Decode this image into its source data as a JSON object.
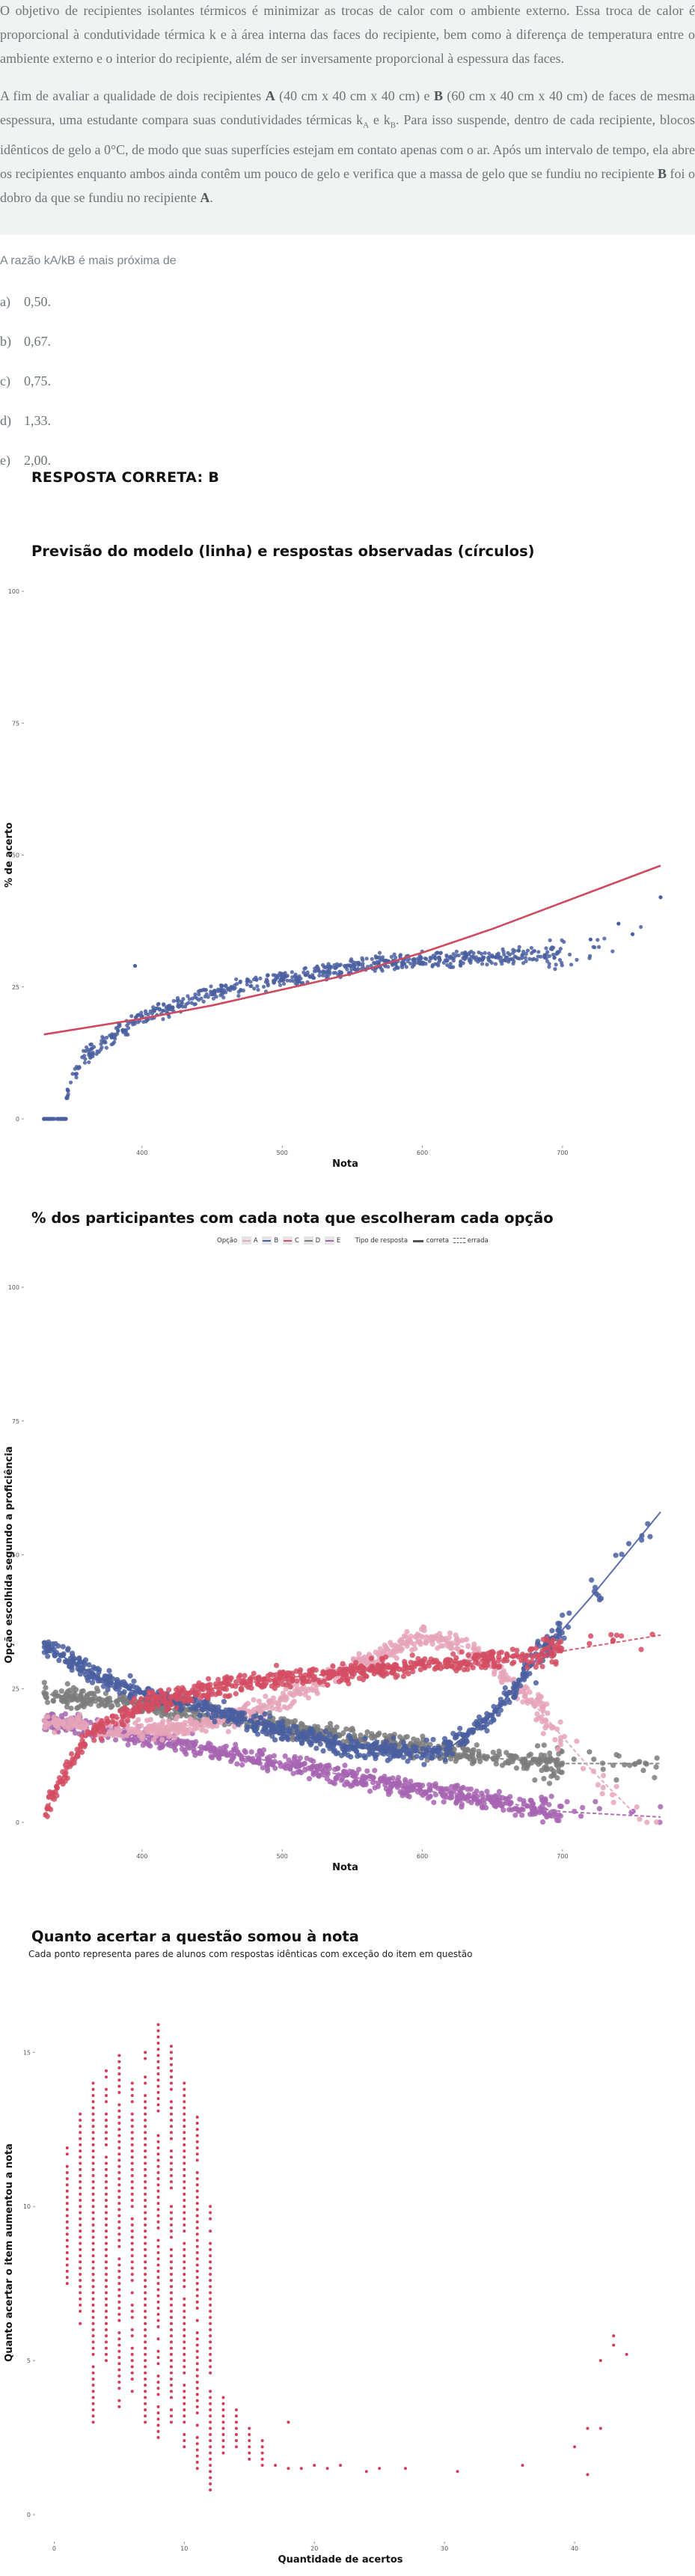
{
  "question": {
    "p1_parts": [
      "O objetivo de recipientes isolantes térmicos é minimizar as trocas de calor com o ambiente externo. Essa troca de calor é proporcional à condutividade térmica k e à área interna das faces do recipiente, bem como à diferença de temperatura entre o ambiente externo e o interior do recipiente, além de ser inversamente proporcional à espessura das faces."
    ],
    "p2_a": "A fim de avaliar a qualidade de dois recipientes ",
    "p2_b": "A",
    "p2_c": " (40 cm x 40 cm x 40 cm) e ",
    "p2_d": "B",
    "p2_e": " (60 cm x 40 cm x 40 cm) de faces de mesma espessura, uma estudante compara suas condutividades térmicas k",
    "p2_f": "A",
    "p2_g": " e k",
    "p2_h": "B",
    "p2_i": ". Para isso suspende, dentro de cada recipiente, blocos idênticos de gelo a 0°C, de modo que suas superfícies estejam em contato apenas com o ar. Após um intervalo de tempo, ela abre os recipientes enquanto ambos ainda contêm um pouco de gelo e verifica que a massa de gelo que se fundiu no recipiente ",
    "p2_j": "B",
    "p2_k": " foi o dobro da que se fundiu no recipiente ",
    "p2_l": "A",
    "p2_m": "."
  },
  "prompt": "A razão kA/kB é mais próxima de",
  "alternatives": [
    {
      "letter": "a)",
      "text": "0,50."
    },
    {
      "letter": "b)",
      "text": "0,67."
    },
    {
      "letter": "c)",
      "text": "0,75."
    },
    {
      "letter": "d)",
      "text": "1,33."
    },
    {
      "letter": "e)",
      "text": "2,00."
    }
  ],
  "answer": "RESPOSTA CORRETA: B",
  "colors": {
    "A": "#e6a5b8",
    "B": "#4a5fa0",
    "C": "#d44d63",
    "D": "#7c7c7c",
    "E": "#a764b2",
    "model_line": "#cf4960",
    "observed": "#4a5fa0",
    "gain_points": "#d33c58"
  },
  "charts": {
    "c1_title": "Previsão do modelo (linha) e respostas observadas (círculos)",
    "c2_title": "% dos participantes com cada nota que escolheram cada opção",
    "c3_title": "Quanto acertar a questão somou à nota",
    "c3_subtitle": "Cada ponto representa pares de alunos com respostas idênticas com exceção do item em questão"
  },
  "legend": {
    "title_opcao": "Opção",
    "options": [
      "A",
      "B",
      "C",
      "D",
      "E"
    ],
    "title_tipo": "Tipo de resposta",
    "tipo_correta": "correta",
    "tipo_errada": "errada"
  },
  "chart_data": [
    {
      "type": "scatter",
      "title": "Previsão do modelo (linha) e respostas observadas (círculos)",
      "xlabel": "Nota",
      "ylabel": "% de acerto",
      "x_ticks": [
        400,
        500,
        600,
        700
      ],
      "y_ticks": [
        0,
        25,
        50,
        75,
        100
      ],
      "xlim": [
        320,
        770
      ],
      "ylim": [
        0,
        100
      ],
      "series": [
        {
          "name": "",
          "kind": "line",
          "x": [
            330,
            400,
            450,
            500,
            550,
            600,
            650,
            700,
            770
          ],
          "values": [
            16,
            19,
            21.5,
            24.5,
            27.5,
            31.5,
            36,
            41,
            48
          ]
        },
        {
          "name": "",
          "kind": "points",
          "x": [
            330,
            340,
            344,
            350,
            360,
            380,
            400,
            430,
            460,
            500,
            540,
            570,
            600,
            640,
            680,
            720,
            750,
            770
          ],
          "values": [
            0,
            0,
            2,
            8,
            12,
            16,
            19.5,
            22,
            24.5,
            26.5,
            28.5,
            29.5,
            30,
            30.5,
            31,
            31.5,
            34,
            42
          ]
        }
      ]
    },
    {
      "type": "scatter",
      "title": "% dos participantes com cada nota que escolheram cada opção",
      "xlabel": "Nota",
      "ylabel": "Opção escolhida segundo a proficiência",
      "x_ticks": [
        400,
        500,
        600,
        700
      ],
      "y_ticks": [
        0,
        25,
        50,
        75,
        100
      ],
      "xlim": [
        320,
        770
      ],
      "ylim": [
        0,
        100
      ],
      "series": [
        {
          "name": "A",
          "x": [
            330,
            400,
            460,
            500,
            550,
            600,
            640,
            680,
            720,
            750
          ],
          "values": [
            19,
            17,
            19,
            23,
            29,
            35,
            32,
            22,
            10,
            2
          ]
        },
        {
          "name": "B",
          "x": [
            330,
            370,
            400,
            450,
            500,
            550,
            600,
            620,
            650,
            680,
            720,
            770
          ],
          "values": [
            33,
            27,
            24,
            21,
            17,
            14,
            13,
            14,
            20,
            30,
            42,
            58
          ]
        },
        {
          "name": "C",
          "x": [
            330,
            340,
            360,
            400,
            450,
            500,
            550,
            600,
            650,
            700,
            770
          ],
          "values": [
            1,
            7,
            16,
            22,
            25,
            27,
            28,
            29.5,
            30.5,
            32,
            35
          ]
        },
        {
          "name": "D",
          "x": [
            330,
            400,
            500,
            600,
            650,
            700,
            770
          ],
          "values": [
            24,
            22,
            18,
            14,
            12,
            11,
            11
          ]
        },
        {
          "name": "E",
          "x": [
            330,
            400,
            500,
            600,
            700,
            770
          ],
          "values": [
            19,
            16,
            11,
            6,
            2,
            1
          ]
        }
      ]
    },
    {
      "type": "scatter",
      "title": "Quanto acertar a questão somou à nota",
      "subtitle": "Cada ponto representa pares de alunos com respostas idênticas com exceção do item em questão",
      "xlabel": "Quantidade de acertos",
      "ylabel": "Quanto acertar o item aumentou a nota",
      "x_ticks": [
        0,
        10,
        20,
        30,
        40
      ],
      "y_ticks": [
        0,
        5,
        10,
        15
      ],
      "xlim": [
        -1,
        45
      ],
      "ylim": [
        0,
        17
      ]
    }
  ]
}
